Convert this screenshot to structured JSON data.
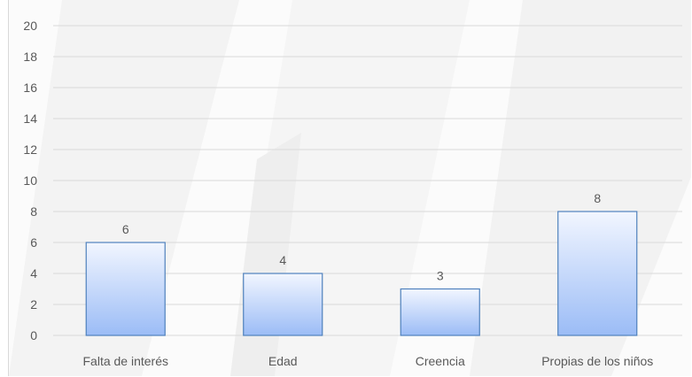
{
  "chart_data": {
    "type": "bar",
    "title": "",
    "xlabel": "",
    "ylabel": "",
    "categories": [
      "Falta de interés",
      "Edad",
      "Creencia",
      "Propias de los niños"
    ],
    "values": [
      6,
      4,
      3,
      8
    ],
    "data_labels": [
      "6",
      "4",
      "3",
      "8"
    ],
    "ylim": [
      0,
      20
    ],
    "yticks": [
      0,
      2,
      4,
      6,
      8,
      10,
      12,
      14,
      16,
      18,
      20
    ],
    "ytick_labels": [
      "0",
      "2",
      "4",
      "6",
      "8",
      "10",
      "12",
      "14",
      "16",
      "18",
      "20"
    ],
    "grid": true,
    "legend": "none",
    "colors": {
      "bar_top": "#f2f6ff",
      "bar_bottom": "#9bbcf6",
      "bar_border": "#4f81bd",
      "grid": "#d9d9d9",
      "text": "#595959"
    }
  }
}
